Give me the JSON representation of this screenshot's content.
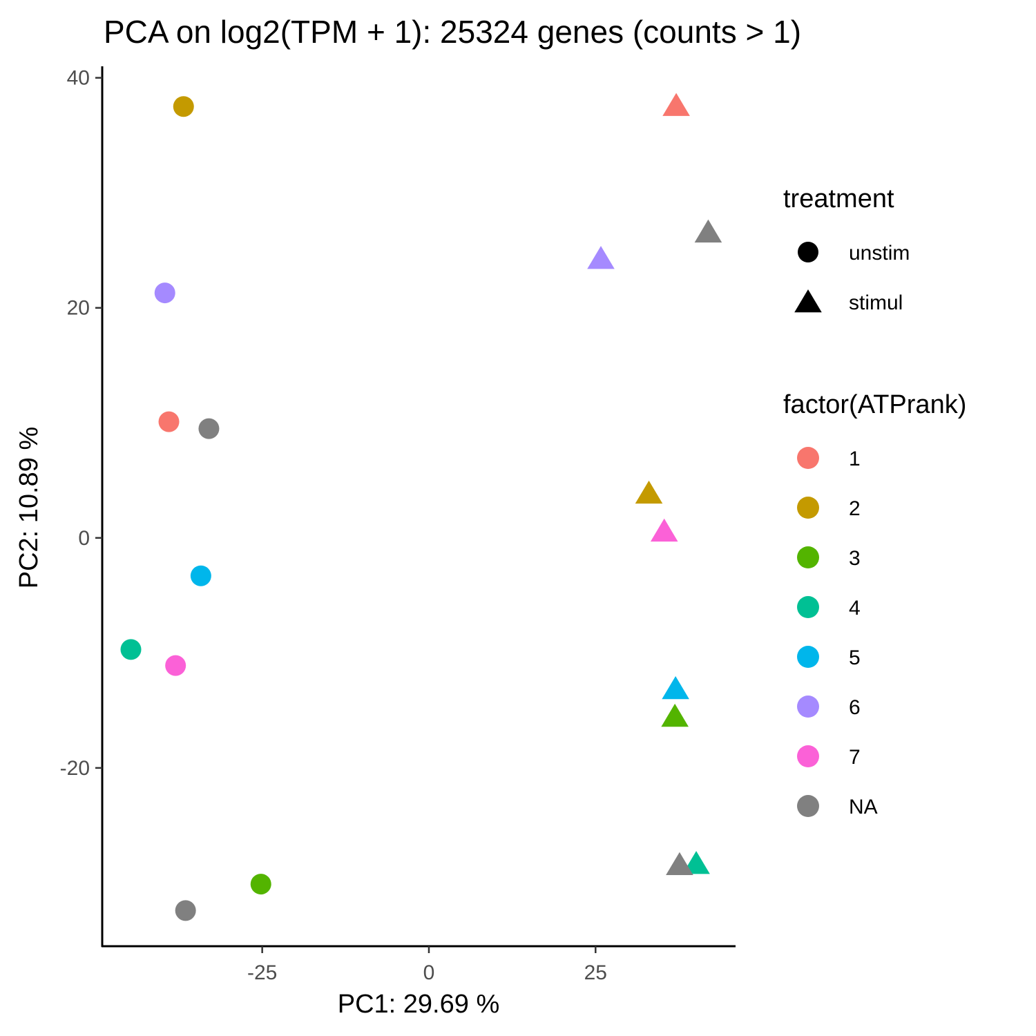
{
  "chart_data": {
    "type": "scatter",
    "title": "PCA on log2(TPM + 1): 25324 genes (counts > 1)",
    "xlabel": "PC1:  29.69 %",
    "ylabel": "PC2:  10.89 %",
    "xlim": [
      -49,
      46
    ],
    "ylim": [
      -35.5,
      41
    ],
    "x_ticks": [
      -25,
      0,
      25
    ],
    "y_ticks": [
      -20,
      0,
      20,
      40
    ],
    "x_tick_labels": [
      "-25",
      "0",
      "25"
    ],
    "y_tick_labels": [
      "-20",
      "0",
      "20",
      "40"
    ],
    "grid": false,
    "legend_position": "right",
    "legends": {
      "treatment": {
        "title": "treatment",
        "items": [
          {
            "label": "unstim",
            "shape": "circle"
          },
          {
            "label": "stimul",
            "shape": "triangle"
          }
        ]
      },
      "color": {
        "title": "factor(ATPrank)",
        "items": [
          {
            "label": "1",
            "color": "#F8766D"
          },
          {
            "label": "2",
            "color": "#C49A00"
          },
          {
            "label": "3",
            "color": "#53B400"
          },
          {
            "label": "4",
            "color": "#00C094"
          },
          {
            "label": "5",
            "color": "#00B6EB"
          },
          {
            "label": "6",
            "color": "#A58AFF"
          },
          {
            "label": "7",
            "color": "#FB61D7"
          },
          {
            "label": "NA",
            "color": "#808080"
          }
        ]
      }
    },
    "points": [
      {
        "x": -36.8,
        "y": 37.5,
        "treatment": "unstim",
        "rank": "2"
      },
      {
        "x": -39.6,
        "y": 21.3,
        "treatment": "unstim",
        "rank": "6"
      },
      {
        "x": -39.0,
        "y": 10.1,
        "treatment": "unstim",
        "rank": "1"
      },
      {
        "x": -33.0,
        "y": 9.5,
        "treatment": "unstim",
        "rank": "NA"
      },
      {
        "x": -34.2,
        "y": -3.3,
        "treatment": "unstim",
        "rank": "5"
      },
      {
        "x": -44.7,
        "y": -9.7,
        "treatment": "unstim",
        "rank": "4"
      },
      {
        "x": -38.0,
        "y": -11.1,
        "treatment": "unstim",
        "rank": "7"
      },
      {
        "x": -25.2,
        "y": -30.1,
        "treatment": "unstim",
        "rank": "3"
      },
      {
        "x": -36.5,
        "y": -32.4,
        "treatment": "unstim",
        "rank": "NA"
      },
      {
        "x": 37.1,
        "y": 37.6,
        "treatment": "stimul",
        "rank": "1"
      },
      {
        "x": 41.9,
        "y": 26.6,
        "treatment": "stimul",
        "rank": "NA"
      },
      {
        "x": 25.8,
        "y": 24.3,
        "treatment": "stimul",
        "rank": "6"
      },
      {
        "x": 33.0,
        "y": 3.9,
        "treatment": "stimul",
        "rank": "2"
      },
      {
        "x": 35.3,
        "y": 0.6,
        "treatment": "stimul",
        "rank": "7"
      },
      {
        "x": 37.0,
        "y": -13.1,
        "treatment": "stimul",
        "rank": "5"
      },
      {
        "x": 36.9,
        "y": -15.5,
        "treatment": "stimul",
        "rank": "3"
      },
      {
        "x": 40.1,
        "y": -28.3,
        "treatment": "stimul",
        "rank": "4"
      },
      {
        "x": 37.6,
        "y": -28.4,
        "treatment": "stimul",
        "rank": "NA"
      }
    ]
  }
}
